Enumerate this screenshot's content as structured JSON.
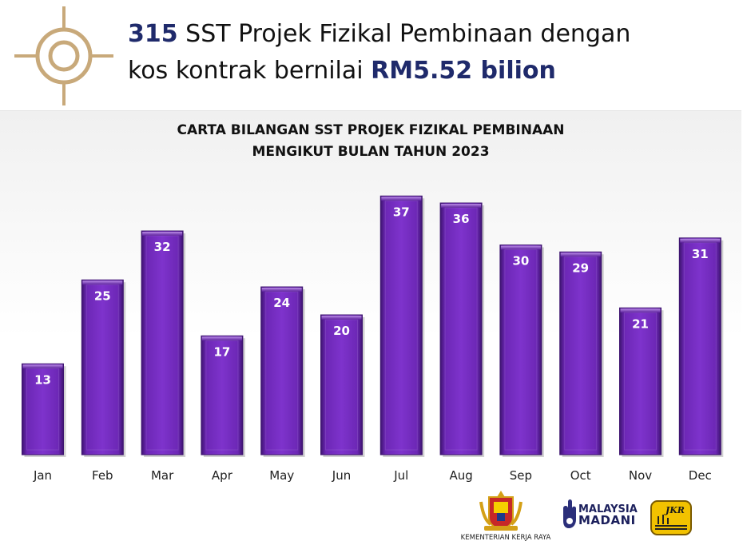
{
  "header": {
    "count": "315",
    "text_line1": " SST Projek Fizikal Pembinaan dengan",
    "text_line2_prefix": "kos kontrak bernilai ",
    "value": "RM5.52 bilion"
  },
  "icons": {
    "header_icon": "crosshair-target-icon"
  },
  "colors": {
    "highlight": "#1f2a6b",
    "bar": "#7a2fc6",
    "bar_dark": "#3e1470",
    "gold": "#c8a97a"
  },
  "chart_data": {
    "type": "bar",
    "title_lines": [
      "CARTA BILANGAN SST PROJEK FIZIKAL PEMBINAAN",
      "MENGIKUT BULAN TAHUN 2023"
    ],
    "categories": [
      "Jan",
      "Feb",
      "Mar",
      "Apr",
      "May",
      "Jun",
      "Jul",
      "Aug",
      "Sep",
      "Oct",
      "Nov",
      "Dec"
    ],
    "values": [
      13,
      25,
      32,
      17,
      24,
      20,
      37,
      36,
      30,
      29,
      21,
      31
    ],
    "ylim": [
      0,
      40
    ],
    "grid": false,
    "legend": "none",
    "data_labels": true
  },
  "footer": {
    "ministry_caption": "KEMENTERIAN KERJA RAYA",
    "madani_line1": "MALAYSIA",
    "madani_line2": "MADANI",
    "jkr": "JKR"
  }
}
